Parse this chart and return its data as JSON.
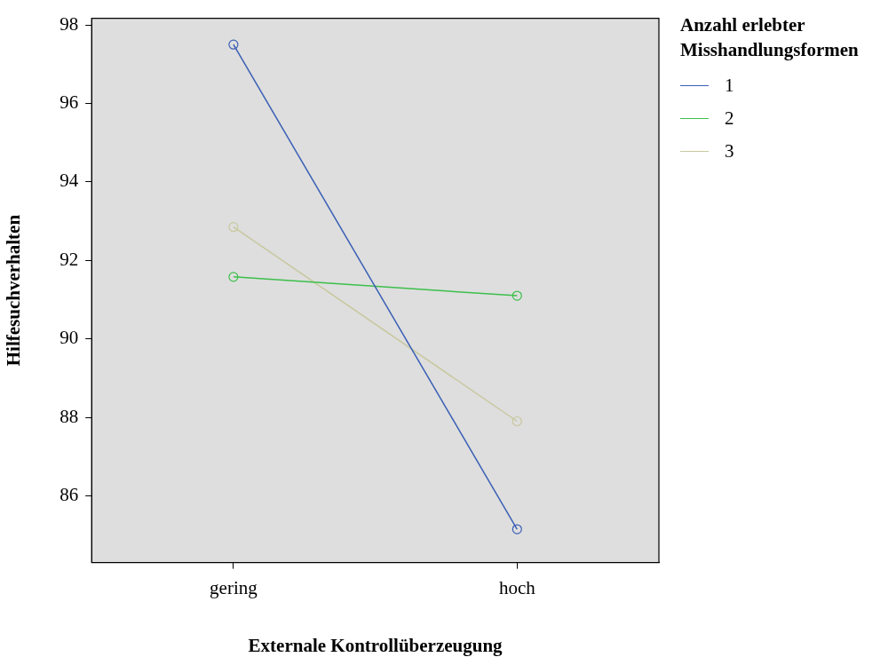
{
  "chart_data": {
    "type": "line",
    "xlabel": "Externale Kontrollüberzeugung",
    "ylabel": "Hilfesuchverhalten",
    "legend_title": "Anzahl erlebter Misshandlungsformen",
    "categories": [
      "gering",
      "hoch"
    ],
    "series": [
      {
        "name": "1",
        "color": "#3a5fb5",
        "values": [
          97.5,
          85.15
        ]
      },
      {
        "name": "2",
        "color": "#3cbf4a",
        "values": [
          91.58,
          91.1
        ]
      },
      {
        "name": "3",
        "color": "#c8c8a0",
        "values": [
          92.85,
          87.9
        ]
      }
    ],
    "ylim": [
      84.3,
      98.17
    ],
    "yticks": [
      86,
      88,
      90,
      92,
      94,
      96,
      98
    ],
    "grid": false,
    "legend": "top right",
    "marker": "circle",
    "line_style": "solid"
  }
}
